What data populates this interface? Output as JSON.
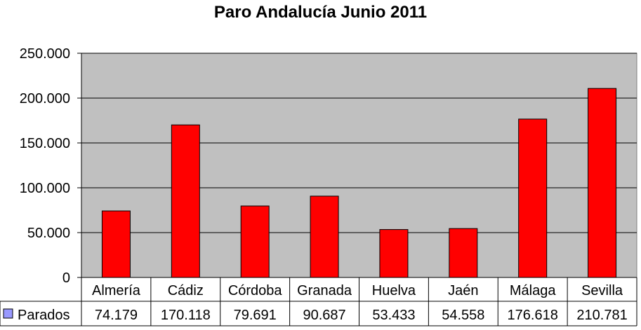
{
  "chart_data": {
    "type": "bar",
    "title": "Paro Andalucía Junio 2011",
    "categories": [
      "Almería",
      "Cádiz",
      "Córdoba",
      "Granada",
      "Huelva",
      "Jaén",
      "Málaga",
      "Sevilla"
    ],
    "series": [
      {
        "name": "Parados",
        "values": [
          74179,
          170118,
          79691,
          90687,
          53433,
          54558,
          176618,
          210781
        ],
        "value_labels": [
          "74.179",
          "170.118",
          "79.691",
          "90.687",
          "53.433",
          "54.558",
          "176.618",
          "210.781"
        ],
        "color": "#ff0000"
      }
    ],
    "ylim": [
      0,
      250000
    ],
    "yticks": [
      0,
      50000,
      100000,
      150000,
      200000,
      250000
    ],
    "ytick_labels": [
      "0",
      "50.000",
      "100.000",
      "150.000",
      "200.000",
      "250.000"
    ],
    "grid": true,
    "plot_background": "#c0c0c0",
    "legend_swatch_color": "#9999ff",
    "data_table": true
  }
}
